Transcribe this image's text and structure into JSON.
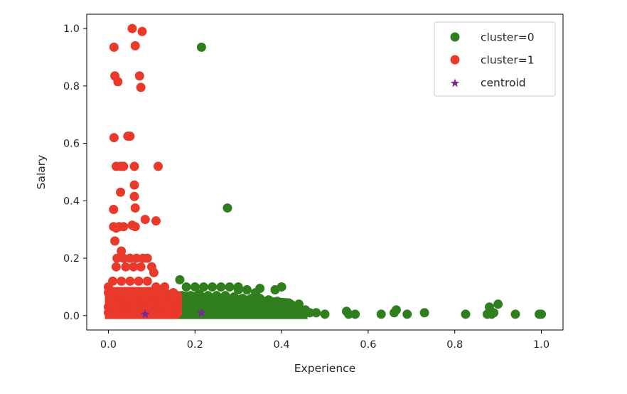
{
  "chart_data": {
    "type": "scatter",
    "title": "",
    "xlabel": "Experience",
    "ylabel": "Salary",
    "xlim": [
      -0.05,
      1.05
    ],
    "ylim": [
      -0.05,
      1.05
    ],
    "xticks": [
      0.0,
      0.2,
      0.4,
      0.6,
      0.8,
      1.0
    ],
    "yticks": [
      0.0,
      0.2,
      0.4,
      0.6,
      0.8,
      1.0
    ],
    "xtick_labels": [
      "0.0",
      "0.2",
      "0.4",
      "0.6",
      "0.8",
      "1.0"
    ],
    "ytick_labels": [
      "0.0",
      "0.2",
      "0.4",
      "0.6",
      "0.8",
      "1.0"
    ],
    "grid": false,
    "legend_position": "top-right",
    "series": [
      {
        "name": "cluster=0",
        "color": "#2f7f1f",
        "marker": "circle",
        "x": [
          0.215,
          0.275,
          0.165,
          0.18,
          0.2,
          0.22,
          0.24,
          0.26,
          0.28,
          0.3,
          0.32,
          0.34,
          0.17,
          0.19,
          0.21,
          0.23,
          0.25,
          0.27,
          0.29,
          0.31,
          0.33,
          0.35,
          0.37,
          0.39,
          0.175,
          0.195,
          0.215,
          0.235,
          0.255,
          0.275,
          0.295,
          0.315,
          0.335,
          0.355,
          0.375,
          0.395,
          0.415,
          0.435,
          0.17,
          0.2,
          0.23,
          0.26,
          0.29,
          0.32,
          0.35,
          0.38,
          0.41,
          0.44,
          0.3,
          0.32,
          0.35,
          0.385,
          0.4,
          0.43,
          0.44,
          0.455,
          0.465,
          0.48,
          0.5,
          0.55,
          0.555,
          0.57,
          0.63,
          0.66,
          0.665,
          0.69,
          0.73,
          0.825,
          0.875,
          0.88,
          0.885,
          0.89,
          0.9,
          0.94,
          0.995,
          1.0,
          0.18,
          0.25,
          0.31,
          0.36
        ],
        "y": [
          0.935,
          0.375,
          0.125,
          0.1,
          0.1,
          0.1,
          0.1,
          0.1,
          0.1,
          0.09,
          0.09,
          0.08,
          0.07,
          0.07,
          0.075,
          0.07,
          0.07,
          0.07,
          0.065,
          0.06,
          0.06,
          0.06,
          0.055,
          0.05,
          0.04,
          0.045,
          0.04,
          0.04,
          0.04,
          0.04,
          0.04,
          0.035,
          0.035,
          0.035,
          0.03,
          0.03,
          0.03,
          0.03,
          0.01,
          0.01,
          0.01,
          0.01,
          0.01,
          0.01,
          0.01,
          0.01,
          0.01,
          0.01,
          0.1,
          0.09,
          0.095,
          0.09,
          0.1,
          0.03,
          0.04,
          0.02,
          0.01,
          0.01,
          0.005,
          0.015,
          0.005,
          0.005,
          0.005,
          0.01,
          0.02,
          0.005,
          0.01,
          0.005,
          0.005,
          0.03,
          0.005,
          0.01,
          0.04,
          0.005,
          0.005,
          0.005,
          0.02,
          0.02,
          0.02,
          0.02
        ]
      },
      {
        "name": "cluster=1",
        "color": "#e8392b",
        "marker": "circle",
        "x": [
          0.055,
          0.078,
          0.013,
          0.062,
          0.015,
          0.022,
          0.072,
          0.075,
          0.045,
          0.05,
          0.013,
          0.018,
          0.028,
          0.035,
          0.06,
          0.115,
          0.06,
          0.028,
          0.06,
          0.012,
          0.062,
          0.012,
          0.055,
          0.018,
          0.025,
          0.035,
          0.062,
          0.085,
          0.11,
          0.015,
          0.03,
          0.02,
          0.035,
          0.05,
          0.065,
          0.08,
          0.09,
          0.018,
          0.04,
          0.058,
          0.075,
          0.1,
          0.105,
          0.0,
          0.01,
          0.03,
          0.05,
          0.07,
          0.09,
          0.11,
          0.13,
          0.15,
          0.0,
          0.02,
          0.04,
          0.06,
          0.08,
          0.1,
          0.12,
          0.14,
          0.16,
          0.005,
          0.025,
          0.045,
          0.065,
          0.085,
          0.105,
          0.125,
          0.145,
          0.16,
          0.0,
          0.02,
          0.04,
          0.06,
          0.08,
          0.1,
          0.12,
          0.14,
          0.16,
          0.0,
          0.02,
          0.04,
          0.06,
          0.08,
          0.1,
          0.12,
          0.14,
          0.16
        ],
        "y": [
          1.0,
          0.99,
          0.935,
          0.94,
          0.835,
          0.815,
          0.835,
          0.795,
          0.625,
          0.625,
          0.62,
          0.52,
          0.52,
          0.52,
          0.52,
          0.52,
          0.455,
          0.43,
          0.415,
          0.37,
          0.375,
          0.31,
          0.315,
          0.305,
          0.31,
          0.31,
          0.31,
          0.335,
          0.33,
          0.26,
          0.225,
          0.2,
          0.2,
          0.2,
          0.2,
          0.2,
          0.2,
          0.17,
          0.17,
          0.17,
          0.17,
          0.17,
          0.15,
          0.1,
          0.12,
          0.12,
          0.12,
          0.12,
          0.12,
          0.1,
          0.1,
          0.08,
          0.08,
          0.08,
          0.08,
          0.08,
          0.08,
          0.08,
          0.08,
          0.07,
          0.07,
          0.05,
          0.05,
          0.05,
          0.05,
          0.05,
          0.05,
          0.05,
          0.05,
          0.05,
          0.03,
          0.03,
          0.03,
          0.03,
          0.03,
          0.03,
          0.03,
          0.03,
          0.03,
          0.01,
          0.01,
          0.01,
          0.01,
          0.01,
          0.01,
          0.01,
          0.01,
          0.01
        ]
      },
      {
        "name": "centroid",
        "color": "#7b2a8e",
        "marker": "star",
        "x": [
          0.085,
          0.215
        ],
        "y": [
          0.005,
          0.01
        ]
      }
    ]
  }
}
